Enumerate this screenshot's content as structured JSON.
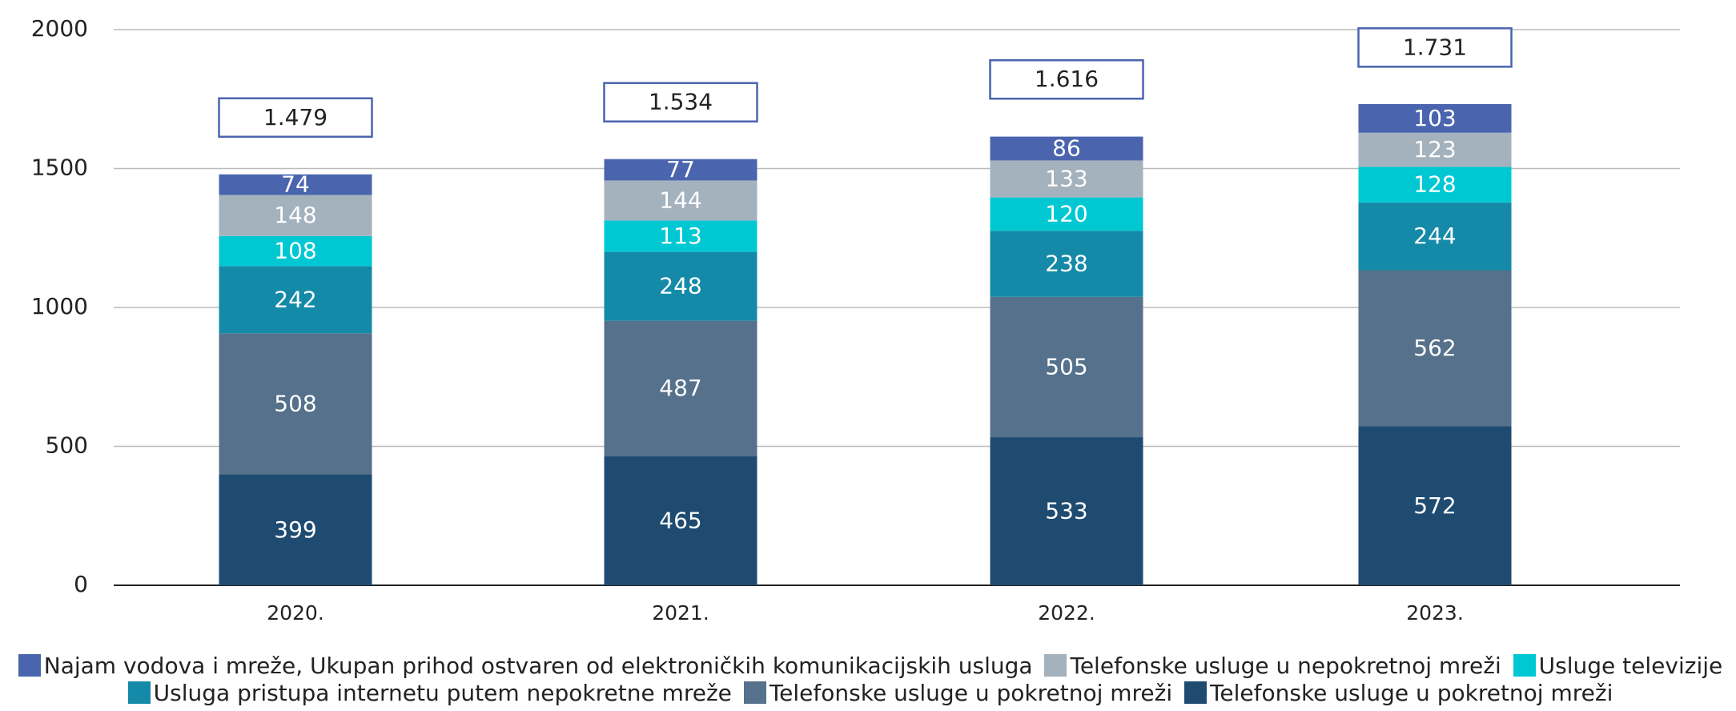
{
  "chart_data": {
    "type": "stacked-bar",
    "categories": [
      "2020.",
      "2021.",
      "2022.",
      "2023."
    ],
    "series": [
      {
        "name": "Telefonske usluge u pokretnoj mreži",
        "color": "#1f4b71",
        "values": [
          399,
          465,
          533,
          572
        ]
      },
      {
        "name": "Telefonske usluge u pokretnoj mreži",
        "color": "#55718b",
        "values": [
          508,
          487,
          505,
          562
        ]
      },
      {
        "name": "Usluga pristupa internetu putem nepokretne mreže",
        "color": "#148aa8",
        "values": [
          242,
          248,
          238,
          244
        ]
      },
      {
        "name": "Usluge televizije",
        "color": "#00c8d3",
        "values": [
          108,
          113,
          120,
          128
        ]
      },
      {
        "name": "Telefonske usluge u nepokretnoj mreži",
        "color": "#a4b2be",
        "values": [
          148,
          144,
          133,
          123
        ]
      },
      {
        "name": "Najam vodova i mreže, Ukupan prihod ostvaren od elektroničkih komunikacijskih usluga",
        "color": "#4a65ae",
        "values": [
          74,
          77,
          86,
          103
        ]
      }
    ],
    "totals": {
      "values": [
        1479,
        1534,
        1616,
        1731
      ],
      "value_labels": [
        "1.479",
        "1.534",
        "1.616",
        "1.731"
      ]
    },
    "ylim": [
      0,
      2000
    ],
    "yticks": [
      0,
      500,
      1000,
      1500,
      2000
    ],
    "grid": true
  }
}
